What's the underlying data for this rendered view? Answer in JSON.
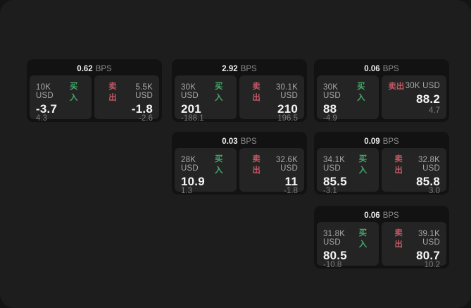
{
  "labels": {
    "bps": "BPS",
    "buy": "买入",
    "sell": "卖出"
  },
  "colors": {
    "screen_bg": "#1d1d1d",
    "card_bg": "#121212",
    "panel_bg": "#242424",
    "buy_green": "#45a96a",
    "sell_red": "#c25964"
  },
  "cards": [
    {
      "bps": "0.62",
      "buy": {
        "amount": "10K USD",
        "value": "-3.7",
        "delta": "4.3"
      },
      "sell": {
        "amount": "5.5K USD",
        "value": "-1.8",
        "delta": "-2.6"
      }
    },
    {
      "bps": "2.92",
      "buy": {
        "amount": "30K USD",
        "value": "201",
        "delta": "-188.1"
      },
      "sell": {
        "amount": "30.1K USD",
        "value": "210",
        "delta": "196.5"
      }
    },
    {
      "bps": "0.06",
      "buy": {
        "amount": "30K USD",
        "value": "88",
        "delta": "-4.9"
      },
      "sell": {
        "amount": "30K USD",
        "value": "88.2",
        "delta": "4.7"
      }
    },
    {
      "bps": "0.03",
      "buy": {
        "amount": "28K USD",
        "value": "10.9",
        "delta": "1.3"
      },
      "sell": {
        "amount": "32.6K USD",
        "value": "11",
        "delta": "-1.8"
      }
    },
    {
      "bps": "0.09",
      "buy": {
        "amount": "34.1K USD",
        "value": "85.5",
        "delta": "-3.1"
      },
      "sell": {
        "amount": "32.8K USD",
        "value": "85.8",
        "delta": "3.0"
      }
    },
    {
      "bps": "0.06",
      "buy": {
        "amount": "31.8K USD",
        "value": "80.5",
        "delta": "-10.8"
      },
      "sell": {
        "amount": "39.1K USD",
        "value": "80.7",
        "delta": "10.2"
      }
    }
  ]
}
